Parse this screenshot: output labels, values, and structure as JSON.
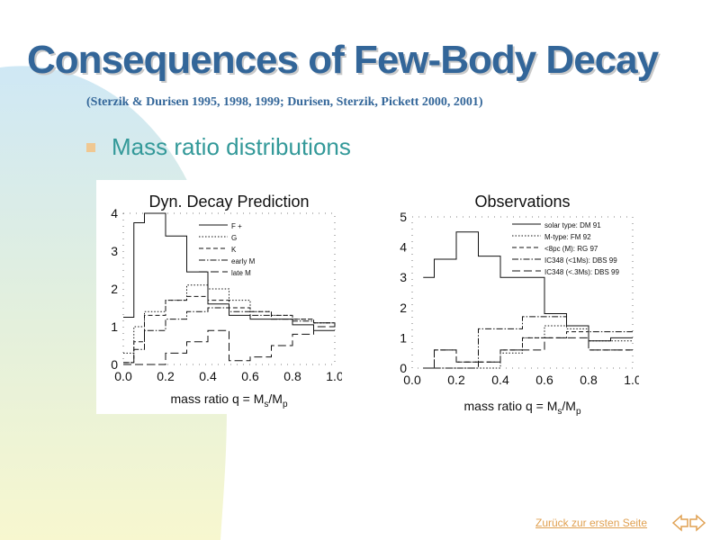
{
  "slide": {
    "title": "Consequences of Few-Body Decay",
    "subtitle": "(Sterzik & Durisen 1995, 1998, 1999; Durisen, Sterzik, Pickett 2000, 2001)",
    "bullet": "Mass ratio distributions"
  },
  "footer": {
    "link_text": "Zurück zur ersten Seite",
    "prev_icon": "arrow-left-icon",
    "next_icon": "arrow-right-icon"
  },
  "colors": {
    "title": "#336699",
    "bullet_text": "#339999",
    "bullet_marker": "#f0c892",
    "link": "#e0a050"
  },
  "chart_data": [
    {
      "type": "line",
      "title": "Dyn. Decay Prediction",
      "xlabel_parts": [
        "mass ratio q = M",
        "s",
        "/M",
        "p"
      ],
      "xlim": [
        0,
        1
      ],
      "ylim": [
        0,
        4
      ],
      "xticks": [
        "0.0",
        "0.2",
        "0.4",
        "0.6",
        "0.8",
        "1.0"
      ],
      "yticks": [
        "0",
        "1",
        "2",
        "3",
        "4"
      ],
      "legend_position": "top-right",
      "series": [
        {
          "name": "F +",
          "style": "solid",
          "x": [
            0,
            0.05,
            0.1,
            0.2,
            0.3,
            0.4,
            0.5,
            0.6,
            0.7,
            0.8,
            0.9,
            1.0
          ],
          "y": [
            1.25,
            3.75,
            4.0,
            3.4,
            2.45,
            1.6,
            1.3,
            1.2,
            1.2,
            1.05,
            0.9,
            0.9
          ]
        },
        {
          "name": "G",
          "style": "dotted",
          "x": [
            0,
            0.05,
            0.1,
            0.2,
            0.3,
            0.4,
            0.5,
            0.6,
            0.7,
            0.8,
            0.9,
            1.0
          ],
          "y": [
            0.3,
            1.0,
            1.4,
            1.7,
            2.1,
            2.0,
            1.7,
            1.4,
            1.3,
            1.2,
            1.1,
            1.1
          ]
        },
        {
          "name": "K",
          "style": "dashed",
          "x": [
            0,
            0.05,
            0.1,
            0.2,
            0.3,
            0.4,
            0.5,
            0.6,
            0.7,
            0.8,
            0.9,
            1.0
          ],
          "y": [
            0.05,
            0.6,
            1.3,
            1.7,
            1.8,
            1.7,
            1.5,
            1.4,
            1.3,
            1.2,
            1.1,
            1.1
          ]
        },
        {
          "name": "early M",
          "style": "dashdot",
          "x": [
            0,
            0.05,
            0.1,
            0.2,
            0.3,
            0.4,
            0.5,
            0.6,
            0.7,
            0.8,
            0.9,
            1.0
          ],
          "y": [
            0.05,
            0.4,
            0.9,
            1.2,
            1.4,
            1.5,
            1.4,
            1.3,
            1.2,
            1.15,
            1.1,
            1.05
          ]
        },
        {
          "name": "late M",
          "style": "longdash",
          "x": [
            0,
            0.05,
            0.1,
            0.2,
            0.3,
            0.4,
            0.5,
            0.6,
            0.7,
            0.8,
            0.9,
            1.0
          ],
          "y": [
            0,
            0.0,
            0.0,
            0.3,
            0.6,
            0.9,
            0.1,
            0.2,
            0.5,
            0.8,
            1.0,
            1.1
          ]
        }
      ]
    },
    {
      "type": "line",
      "title": "Observations",
      "xlabel_parts": [
        "mass ratio q = M",
        "s",
        "/M",
        "p"
      ],
      "xlim": [
        0,
        1
      ],
      "ylim": [
        0,
        5
      ],
      "xticks": [
        "0.0",
        "0.2",
        "0.4",
        "0.6",
        "0.8",
        "1.0"
      ],
      "yticks": [
        "0",
        "1",
        "2",
        "3",
        "4",
        "5"
      ],
      "legend_position": "top-right",
      "series": [
        {
          "name": "solar type: DM 91",
          "style": "solid",
          "x": [
            0.05,
            0.1,
            0.2,
            0.3,
            0.4,
            0.5,
            0.6,
            0.7,
            0.8,
            0.9,
            1.0
          ],
          "y": [
            3.0,
            3.6,
            4.5,
            3.7,
            3.0,
            3.0,
            1.8,
            1.4,
            0.9,
            1.0,
            1.0
          ]
        },
        {
          "name": "M-type: FM 92",
          "style": "dotted",
          "x": [
            0.05,
            0.1,
            0.2,
            0.3,
            0.4,
            0.5,
            0.6,
            0.7,
            0.8,
            0.9,
            1.0
          ],
          "y": [
            0,
            0,
            0,
            0,
            0.5,
            1.0,
            1.4,
            1.3,
            0.9,
            0.9,
            0.9
          ]
        },
        {
          "name": "<8pc (M): RG 97",
          "style": "dashed",
          "x": [
            0.05,
            0.1,
            0.2,
            0.3,
            0.4,
            0.5,
            0.6,
            0.7,
            0.8,
            0.9,
            1.0
          ],
          "y": [
            0,
            0.6,
            0.2,
            0.2,
            0.6,
            1.0,
            1.0,
            1.2,
            0.6,
            0.6,
            0.6
          ]
        },
        {
          "name": "IC348 (<1Ms): DBS 99",
          "style": "dashdot",
          "x": [
            0.05,
            0.1,
            0.2,
            0.3,
            0.4,
            0.5,
            0.6,
            0.7,
            0.8,
            0.9,
            1.0
          ],
          "y": [
            0,
            0,
            0,
            1.3,
            1.3,
            1.7,
            1.7,
            1.4,
            1.2,
            1.2,
            1.2
          ]
        },
        {
          "name": "IC348 (<.3Ms): DBS 99",
          "style": "longdash",
          "x": [
            0.05,
            0.1,
            0.2,
            0.3,
            0.4,
            0.5,
            0.6,
            0.7,
            0.8,
            0.9,
            1.0
          ],
          "y": [
            0,
            0.6,
            0.2,
            0.2,
            0.6,
            0.6,
            1.0,
            1.0,
            0.6,
            0.6,
            0.6
          ]
        }
      ]
    }
  ]
}
